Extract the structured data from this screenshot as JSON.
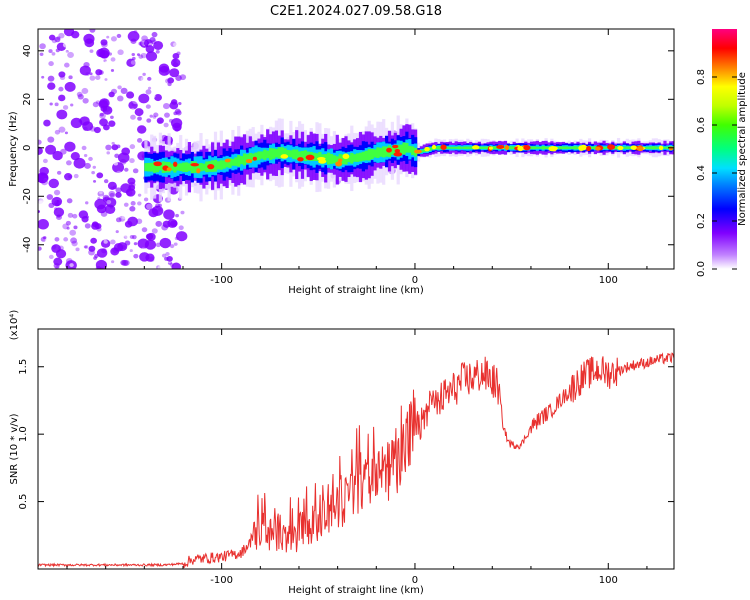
{
  "title": "C2E1.2024.027.09.58.G18",
  "chart_data": [
    {
      "type": "heatmap",
      "title": "C2E1.2024.027.09.58.G18",
      "xlabel": "Height of straight line (km)",
      "ylabel": "Frequency (Hz)",
      "xlim": [
        -195,
        134
      ],
      "ylim": [
        -50,
        49
      ],
      "xticks": [
        -100,
        0,
        100
      ],
      "xtick_labels": [
        "-100",
        "0",
        "100"
      ],
      "yticks": [
        -40,
        -20,
        0,
        20,
        40
      ],
      "ytick_labels": [
        "-40",
        "-20",
        "0",
        "20",
        "40"
      ],
      "ridge": {
        "x": [
          -140,
          -130,
          -120,
          -110,
          -100,
          -90,
          -80,
          -70,
          -60,
          -50,
          -40,
          -30,
          -20,
          -10,
          -5,
          0,
          5,
          10,
          20,
          40,
          60,
          80,
          100,
          120,
          134
        ],
        "y": [
          -8,
          -8,
          -8,
          -8,
          -7,
          -5,
          -3,
          -2,
          -3,
          -4,
          -5,
          -4,
          -2,
          -1,
          0,
          -2,
          -1,
          0,
          0,
          0,
          0,
          0,
          0,
          0,
          0
        ]
      },
      "colorbar": {
        "label": "Normalized spectral amplitude",
        "range": [
          0,
          1
        ],
        "ticks": [
          0.0,
          0.2,
          0.4,
          0.6,
          0.8
        ],
        "tick_labels": [
          "0.0",
          "0.2",
          "0.4",
          "0.6",
          "0.8"
        ],
        "colormap": [
          "#ffffff",
          "#8000ff",
          "#0000ff",
          "#00c0ff",
          "#00ff80",
          "#80ff00",
          "#ffff00",
          "#ff8000",
          "#ff0000",
          "#ff0080"
        ]
      }
    },
    {
      "type": "line",
      "xlabel": "Height of straight line (km)",
      "ylabel": "SNR (10 * v/v)",
      "y_multiplier": "(x10⁴)",
      "xlim": [
        -195,
        134
      ],
      "ylim": [
        0,
        1.78
      ],
      "xticks": [
        -100,
        0,
        100
      ],
      "xtick_labels": [
        "-100",
        "0",
        "100"
      ],
      "yticks": [
        0.5,
        1.0,
        1.5
      ],
      "ytick_labels": [
        "0.5",
        "1.0",
        "1.5"
      ],
      "series": [
        {
          "name": "SNR",
          "color": "#e8312f",
          "x": [
            -195,
            -160,
            -130,
            -120,
            -115,
            -100,
            -90,
            -85,
            -80,
            -75,
            -70,
            -65,
            -60,
            -55,
            -50,
            -45,
            -40,
            -35,
            -30,
            -25,
            -20,
            -15,
            -10,
            -5,
            0,
            5,
            10,
            15,
            20,
            25,
            30,
            35,
            40,
            43,
            45,
            48,
            50,
            55,
            60,
            65,
            70,
            75,
            80,
            85,
            90,
            95,
            100,
            105,
            110,
            115,
            120,
            125,
            134
          ],
          "values": [
            0.03,
            0.03,
            0.03,
            0.04,
            0.07,
            0.09,
            0.12,
            0.2,
            0.3,
            0.25,
            0.28,
            0.24,
            0.27,
            0.32,
            0.33,
            0.38,
            0.45,
            0.55,
            0.6,
            0.62,
            0.66,
            0.72,
            0.8,
            0.92,
            1.03,
            1.1,
            1.2,
            1.28,
            1.33,
            1.4,
            1.42,
            1.45,
            1.4,
            1.35,
            1.1,
            0.95,
            0.92,
            0.92,
            1.05,
            1.12,
            1.17,
            1.25,
            1.32,
            1.4,
            1.45,
            1.48,
            1.45,
            1.47,
            1.5,
            1.52,
            1.53,
            1.55,
            1.57
          ]
        }
      ]
    }
  ]
}
